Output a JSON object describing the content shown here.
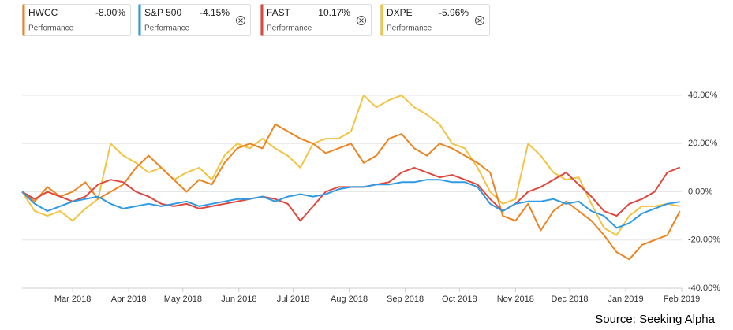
{
  "chart_data": {
    "type": "line",
    "legend_caption": "Performance",
    "source": "Source: Seeking Alpha",
    "x": [
      0,
      7,
      14,
      21,
      28,
      35,
      42,
      49,
      56,
      63,
      70,
      77,
      84,
      91,
      98,
      105,
      112,
      119,
      126,
      133,
      140,
      147,
      154,
      161,
      168,
      175,
      182,
      189,
      196,
      203,
      210,
      217,
      224,
      231,
      238,
      245,
      252,
      259,
      266,
      273,
      280,
      287,
      294,
      301,
      308,
      315,
      322,
      329,
      336,
      343,
      350,
      357,
      364
    ],
    "xlim": [
      0,
      365
    ],
    "xticks": [
      {
        "value": 28,
        "label": "Mar 2018"
      },
      {
        "value": 59,
        "label": "Apr 2018"
      },
      {
        "value": 89,
        "label": "May 2018"
      },
      {
        "value": 120,
        "label": "Jun 2018"
      },
      {
        "value": 150,
        "label": "Jul 2018"
      },
      {
        "value": 181,
        "label": "Aug 2018"
      },
      {
        "value": 212,
        "label": "Sep 2018"
      },
      {
        "value": 242,
        "label": "Oct 2018"
      },
      {
        "value": 273,
        "label": "Nov 2018"
      },
      {
        "value": 303,
        "label": "Dec 2018"
      },
      {
        "value": 334,
        "label": "Jan 2019"
      },
      {
        "value": 365,
        "label": "Feb 2019"
      }
    ],
    "ylim": [
      -40,
      47
    ],
    "yticks": [
      {
        "value": 40,
        "label": "40.00%"
      },
      {
        "value": 20,
        "label": "20.00%"
      },
      {
        "value": 0,
        "label": "0.00%"
      },
      {
        "value": -20,
        "label": "-20.00%"
      },
      {
        "value": -40,
        "label": "-40.00%"
      }
    ],
    "grid": true,
    "series": [
      {
        "name": "HWCC",
        "change": "-8.00%",
        "color": "#ee8421",
        "values": [
          0,
          -4,
          2,
          -2,
          0,
          4,
          -3,
          0,
          3,
          10,
          15,
          10,
          5,
          0,
          5,
          3,
          12,
          18,
          20,
          18,
          28,
          25,
          22,
          20,
          16,
          18,
          20,
          12,
          15,
          22,
          24,
          18,
          15,
          20,
          18,
          15,
          12,
          8,
          -10,
          -12,
          -5,
          -16,
          -8,
          -4,
          -8,
          -12,
          -18,
          -25,
          -28,
          -22,
          -20,
          -18,
          -8
        ]
      },
      {
        "name": "S&P 500",
        "change": "-4.15%",
        "color": "#2f9ae3",
        "values": [
          0,
          -5,
          -8,
          -6,
          -4,
          -3,
          -2,
          -5,
          -7,
          -6,
          -5,
          -6,
          -5,
          -4,
          -6,
          -5,
          -4,
          -3,
          -3,
          -2,
          -4,
          -2,
          -1,
          -2,
          -1,
          1,
          2,
          2,
          3,
          3,
          4,
          4,
          5,
          5,
          4,
          4,
          2,
          -5,
          -8,
          -5,
          -4,
          -4,
          -3,
          -5,
          -4,
          -8,
          -10,
          -15,
          -13,
          -9,
          -7,
          -5,
          -4.15
        ]
      },
      {
        "name": "FAST",
        "change": "10.17%",
        "color": "#e0463b",
        "values": [
          0,
          -3,
          0,
          -2,
          -4,
          -2,
          3,
          5,
          4,
          0,
          -2,
          -5,
          -6,
          -5,
          -7,
          -6,
          -5,
          -4,
          -3,
          -2,
          -3,
          -5,
          -12,
          -6,
          0,
          2,
          2,
          2,
          3,
          4,
          8,
          10,
          8,
          6,
          7,
          5,
          3,
          -3,
          -8,
          -5,
          0,
          2,
          5,
          8,
          3,
          -2,
          -8,
          -10,
          -5,
          -3,
          0,
          8,
          10.17
        ]
      },
      {
        "name": "DXPE",
        "change": "-5.96%",
        "color": "#f2c443",
        "values": [
          0,
          -8,
          -10,
          -8,
          -12,
          -7,
          -3,
          20,
          15,
          12,
          8,
          10,
          5,
          8,
          10,
          5,
          15,
          20,
          18,
          22,
          18,
          15,
          10,
          20,
          22,
          22,
          25,
          40,
          35,
          38,
          40,
          35,
          32,
          28,
          20,
          18,
          10,
          0,
          -5,
          -3,
          20,
          15,
          8,
          5,
          6,
          -5,
          -15,
          -18,
          -10,
          -6,
          -6,
          -5,
          -5.96
        ]
      }
    ]
  }
}
